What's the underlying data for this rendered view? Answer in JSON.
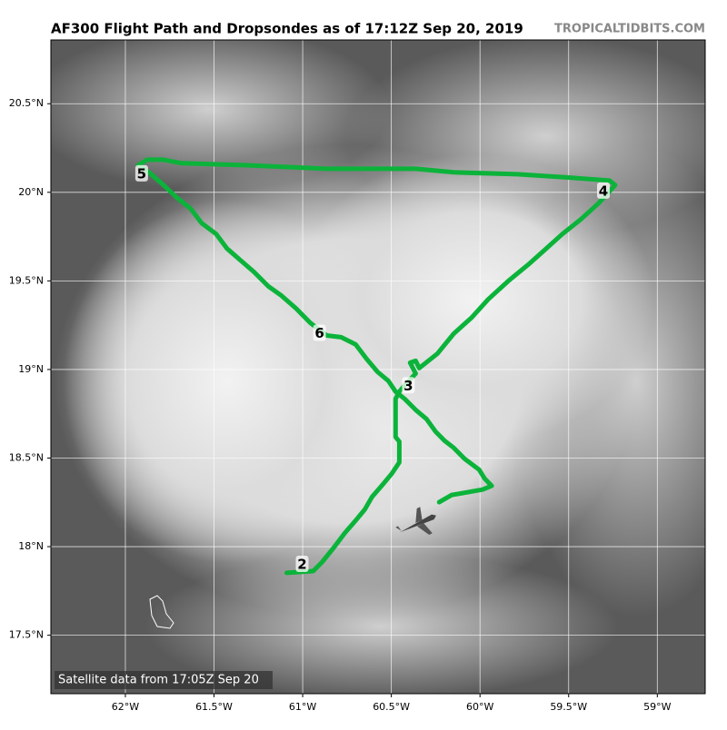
{
  "chart_data": {
    "type": "map",
    "title": "AF300 Flight Path and Dropsondes as of 17:12Z Sep 20, 2019",
    "credit": "TROPICALTIDBITS.COM",
    "footnote": "Satellite data from 17:05Z Sep 20",
    "xlim": [
      -62.42,
      -58.73
    ],
    "ylim": [
      17.17,
      20.86
    ],
    "xticks": [
      {
        "value": -62,
        "label": "62°W"
      },
      {
        "value": -61.5,
        "label": "61.5°W"
      },
      {
        "value": -61,
        "label": "61°W"
      },
      {
        "value": -60.5,
        "label": "60.5°W"
      },
      {
        "value": -60,
        "label": "60°W"
      },
      {
        "value": -59.5,
        "label": "59.5°W"
      },
      {
        "value": -59,
        "label": "59°W"
      }
    ],
    "yticks": [
      {
        "value": 17.5,
        "label": "17.5°N"
      },
      {
        "value": 18,
        "label": "18°N"
      },
      {
        "value": 18.5,
        "label": "18.5°N"
      },
      {
        "value": 19,
        "label": "19°N"
      },
      {
        "value": 19.5,
        "label": "19.5°N"
      },
      {
        "value": 20,
        "label": "20°N"
      },
      {
        "value": 20.5,
        "label": "20.5°N"
      }
    ],
    "grid": true,
    "flight_path": {
      "color": "#0bb33a",
      "lon": [
        -61.09,
        -60.941,
        -60.89,
        -60.824,
        -60.762,
        -60.701,
        -60.65,
        -60.609,
        -60.547,
        -60.496,
        -60.455,
        -60.455,
        -60.476,
        -60.476,
        -60.455,
        -60.425,
        -60.363,
        -60.394,
        -60.363,
        -60.343,
        -60.24,
        -60.148,
        -60.046,
        -59.954,
        -59.841,
        -59.729,
        -59.637,
        -59.535,
        -59.432,
        -59.33,
        -59.238,
        -59.269,
        -59.483,
        -59.79,
        -60.148,
        -60.363,
        -60.864,
        -61.315,
        -61.683,
        -61.785,
        -61.877,
        -61.928,
        -61.867,
        -61.785,
        -61.708,
        -61.632,
        -61.57,
        -61.488,
        -61.427,
        -61.356,
        -61.274,
        -61.192,
        -61.12,
        -61.038,
        -60.957,
        -60.864,
        -60.783,
        -60.701,
        -60.639,
        -60.578,
        -60.517,
        -60.476,
        -60.425,
        -60.363,
        -60.302,
        -60.251,
        -60.2,
        -60.148,
        -60.087,
        -60.005,
        -59.974,
        -59.934,
        -59.985,
        -60.097,
        -60.159,
        -60.23
      ],
      "lat": [
        17.852,
        17.862,
        17.913,
        17.995,
        18.077,
        18.148,
        18.21,
        18.281,
        18.353,
        18.414,
        18.476,
        18.593,
        18.619,
        18.834,
        18.875,
        18.911,
        18.977,
        19.038,
        19.049,
        19.008,
        19.09,
        19.202,
        19.294,
        19.396,
        19.499,
        19.591,
        19.673,
        19.765,
        19.847,
        19.939,
        20.041,
        20.066,
        20.082,
        20.102,
        20.113,
        20.133,
        20.133,
        20.153,
        20.164,
        20.184,
        20.184,
        20.153,
        20.113,
        20.041,
        19.969,
        19.908,
        19.826,
        19.765,
        19.683,
        19.621,
        19.55,
        19.468,
        19.417,
        19.345,
        19.263,
        19.192,
        19.182,
        19.141,
        19.059,
        18.987,
        18.936,
        18.875,
        18.834,
        18.772,
        18.721,
        18.65,
        18.598,
        18.558,
        18.496,
        18.435,
        18.384,
        18.343,
        18.322,
        18.302,
        18.292,
        18.251
      ]
    },
    "dropsondes": [
      {
        "label": "2",
        "lon": -61.003,
        "lat": 17.903
      },
      {
        "label": "3",
        "lon": -60.404,
        "lat": 18.911
      },
      {
        "label": "4",
        "lon": -59.304,
        "lat": 20.01
      },
      {
        "label": "5",
        "lon": -61.908,
        "lat": 20.107
      },
      {
        "label": "6",
        "lon": -60.905,
        "lat": 19.207
      }
    ]
  }
}
